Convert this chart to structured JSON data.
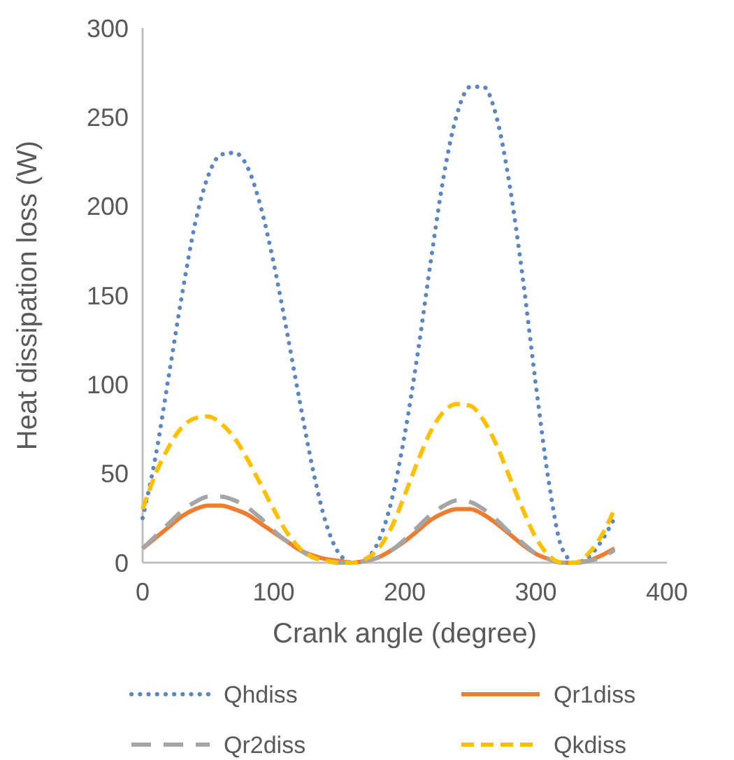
{
  "chart_data": {
    "type": "line",
    "xlabel": "Crank angle (degree)",
    "ylabel": "Heat dissipation loss (W)",
    "x": [
      0,
      10,
      20,
      30,
      40,
      50,
      60,
      70,
      80,
      90,
      100,
      110,
      120,
      130,
      140,
      150,
      160,
      170,
      180,
      190,
      200,
      210,
      220,
      230,
      240,
      250,
      260,
      270,
      280,
      290,
      300,
      310,
      320,
      330,
      340,
      350,
      360
    ],
    "xlim": [
      0,
      400
    ],
    "xticks": [
      0,
      100,
      200,
      300,
      400
    ],
    "ylim": [
      0,
      300
    ],
    "yticks": [
      0,
      50,
      100,
      150,
      200,
      250,
      300
    ],
    "grid": false,
    "legend": "bottom",
    "series": [
      {
        "name": "Qhdiss",
        "color": "#5b86c2",
        "line_style": "dotted",
        "values": [
          25,
          60,
          105,
          150,
          190,
          217,
          229,
          230,
          222,
          200,
          168,
          130,
          90,
          52,
          22,
          5,
          0,
          2,
          12,
          35,
          72,
          118,
          170,
          218,
          252,
          267,
          267,
          250,
          212,
          160,
          100,
          45,
          8,
          0,
          3,
          12,
          25
        ]
      },
      {
        "name": "Qr1diss",
        "color": "#ed7d31",
        "line_style": "solid",
        "values": [
          8,
          14,
          20,
          26,
          30,
          32,
          32,
          30,
          27,
          22,
          17,
          12,
          7,
          4,
          2,
          1,
          0,
          1,
          3,
          7,
          12,
          18,
          24,
          28,
          30,
          30,
          27,
          22,
          16,
          10,
          5,
          2,
          0,
          0,
          1,
          4,
          8
        ]
      },
      {
        "name": "Qr2diss",
        "color": "#a5a5a5",
        "line_style": "longdash",
        "values": [
          8,
          15,
          22,
          29,
          34,
          37,
          37,
          35,
          31,
          25,
          18,
          12,
          7,
          3,
          1,
          0,
          0,
          1,
          3,
          7,
          13,
          20,
          27,
          32,
          35,
          34,
          30,
          24,
          17,
          11,
          5,
          2,
          0,
          0,
          1,
          3,
          7
        ]
      },
      {
        "name": "Qkdiss",
        "color": "#ffc000",
        "line_style": "dashed",
        "values": [
          30,
          50,
          65,
          76,
          81,
          82,
          78,
          70,
          58,
          44,
          30,
          17,
          8,
          3,
          1,
          0,
          0,
          2,
          8,
          20,
          38,
          57,
          74,
          85,
          89,
          88,
          80,
          66,
          48,
          30,
          14,
          4,
          0,
          0,
          5,
          15,
          30
        ]
      }
    ]
  }
}
